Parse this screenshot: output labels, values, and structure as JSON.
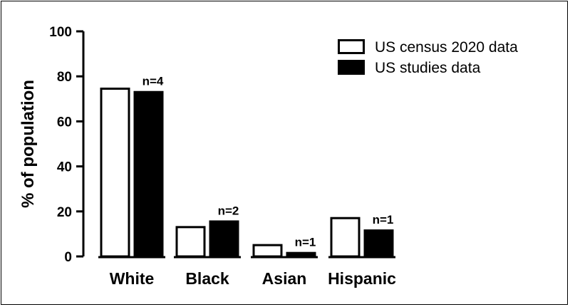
{
  "chart_data": {
    "type": "bar",
    "title": "",
    "xlabel": "",
    "ylabel": "% of population",
    "ylim": [
      0,
      100
    ],
    "yticks": [
      0,
      20,
      40,
      60,
      80,
      100
    ],
    "categories": [
      "White",
      "Black",
      "Asian",
      "Hispanic"
    ],
    "series": [
      {
        "name": "US census 2020 data",
        "values": [
          75,
          13.5,
          5.5,
          17.5
        ],
        "fill": "#ffffff",
        "stroke": "#000000"
      },
      {
        "name": "US studies data",
        "values": [
          73.5,
          16,
          2,
          12
        ],
        "fill": "#000000",
        "stroke": "#000000"
      }
    ],
    "annotations": [
      "n=4",
      "n=2",
      "n=1",
      "n=1"
    ],
    "legend_position": "top-right",
    "grid": false
  }
}
